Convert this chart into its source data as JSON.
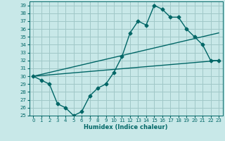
{
  "title": "",
  "xlabel": "Humidex (Indice chaleur)",
  "bg_color": "#c8e8e8",
  "grid_color": "#a0c8c8",
  "line_color": "#006666",
  "xlim": [
    -0.5,
    23.5
  ],
  "ylim": [
    25,
    39.5
  ],
  "yticks": [
    25,
    26,
    27,
    28,
    29,
    30,
    31,
    32,
    33,
    34,
    35,
    36,
    37,
    38,
    39
  ],
  "xticks": [
    0,
    1,
    2,
    3,
    4,
    5,
    6,
    7,
    8,
    9,
    10,
    11,
    12,
    13,
    14,
    15,
    16,
    17,
    18,
    19,
    20,
    21,
    22,
    23
  ],
  "line1": {
    "x": [
      0,
      1,
      2,
      3,
      4,
      5,
      6,
      7,
      8,
      9,
      10,
      11,
      12,
      13,
      14,
      15,
      16,
      17,
      18,
      19,
      20,
      21,
      22,
      23
    ],
    "y": [
      30,
      29.5,
      29,
      26.5,
      26,
      25,
      25.5,
      27.5,
      28.5,
      29,
      30.5,
      32.5,
      35.5,
      37,
      36.5,
      39,
      38.5,
      37.5,
      37.5,
      36,
      35,
      34,
      32,
      32
    ]
  },
  "line2": {
    "x": [
      0,
      23
    ],
    "y": [
      30,
      32
    ]
  },
  "line3": {
    "x": [
      0,
      23
    ],
    "y": [
      30,
      35.5
    ]
  },
  "marker_size": 2.5,
  "line_width": 1.0
}
